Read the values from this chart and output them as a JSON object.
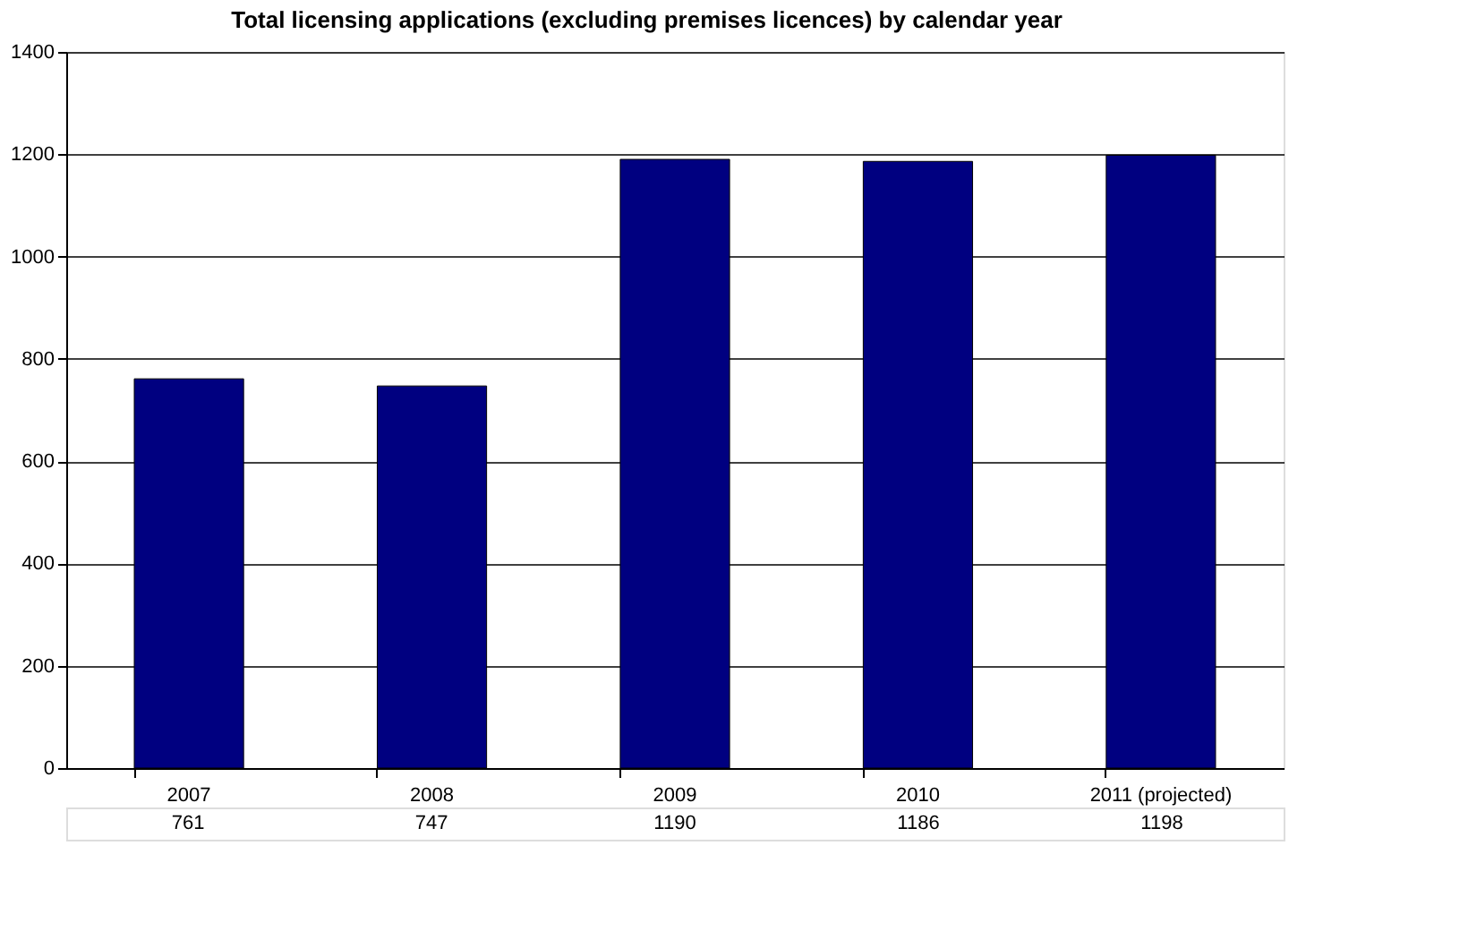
{
  "chart_data": {
    "type": "bar",
    "title": "Total licensing applications (excluding premises licences) by calendar year",
    "categories": [
      "2007",
      "2008",
      "2009",
      "2010",
      "2011 (projected)"
    ],
    "series": [
      {
        "color": "#000080",
        "values": [
          761,
          747,
          1190,
          1186,
          1198
        ]
      }
    ],
    "ylim": [
      0,
      1400
    ],
    "yticks": [
      0,
      200,
      400,
      600,
      800,
      1000,
      1200,
      1400
    ],
    "grid": "y",
    "data_labels": true,
    "legend": false
  }
}
